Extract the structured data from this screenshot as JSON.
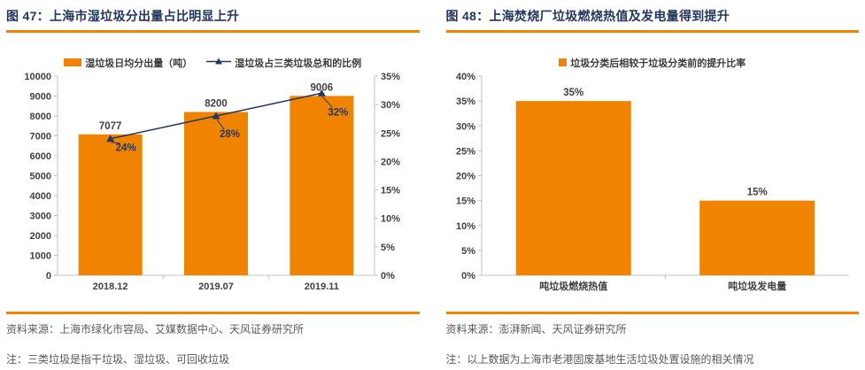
{
  "colors": {
    "accent_orange": "#F08300",
    "navy": "#1F3864",
    "axis_line": "#C0C0C0",
    "tick_label": "#404040",
    "title_text": "#23355B",
    "source_text": "#595959"
  },
  "panels": [
    {
      "title": "图 47：上海市湿垃圾分出量占比明显上升",
      "source": "资料来源：上海市绿化市容局、艾媒数据中心、天风证券研究所",
      "note": "注：三类垃圾是指干垃圾、湿垃圾、可回收垃圾"
    },
    {
      "title": "图 48：上海焚烧厂垃圾燃烧热值及发电量得到提升",
      "source": "资料来源：澎湃新闻、天风证券研究所",
      "note": "注：以上数据为上海市老港固废基地生活垃圾处置设施的相关情况"
    }
  ],
  "chart_data": [
    {
      "type": "bar",
      "title": "上海市湿垃圾分出量占比明显上升",
      "categories": [
        "2018.12",
        "2019.07",
        "2019.11"
      ],
      "series": [
        {
          "name": "湿垃圾日均分出量（吨）",
          "type": "bar",
          "axis": "left",
          "values": [
            7077,
            8200,
            9006
          ],
          "labels": [
            "7077",
            "8200",
            "9006"
          ],
          "color": "#F08300",
          "label_color": "#404040"
        },
        {
          "name": "湿垃圾占三类垃圾总和的比例",
          "type": "line",
          "axis": "right",
          "values": [
            24,
            28,
            32
          ],
          "labels": [
            "24%",
            "28%",
            "32%"
          ],
          "color": "#1F3864",
          "label_color": "#1F3864"
        }
      ],
      "left_axis": {
        "min": 0,
        "max": 10000,
        "step": 1000,
        "format": "number"
      },
      "right_axis": {
        "min": 0,
        "max": 35,
        "step": 5,
        "format": "percent"
      },
      "grid": false,
      "legend_position": "top"
    },
    {
      "type": "bar",
      "title": "上海焚烧厂垃圾燃烧热值及发电量得到提升",
      "categories": [
        "吨垃圾燃烧热值",
        "吨垃圾发电量"
      ],
      "series": [
        {
          "name": "垃圾分类后相较于垃圾分类前的提升比率",
          "type": "bar",
          "axis": "left",
          "values": [
            35,
            15
          ],
          "labels": [
            "35%",
            "15%"
          ],
          "color": "#F08300",
          "label_color": "#404040"
        }
      ],
      "left_axis": {
        "min": 0,
        "max": 40,
        "step": 5,
        "format": "percent"
      },
      "grid": false,
      "legend_position": "top"
    }
  ]
}
